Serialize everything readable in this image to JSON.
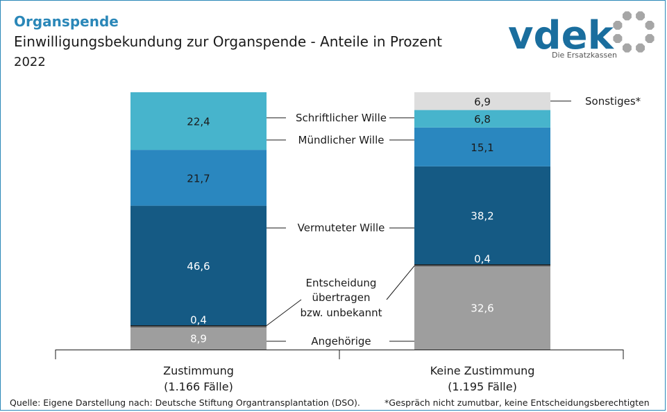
{
  "header": {
    "title": "Organspende",
    "subtitle": "Einwilligungsbekundung zur Organspende - Anteile in Prozent",
    "year": "2022"
  },
  "logo": {
    "wordmark": "vdek",
    "tagline": "Die Ersatzkassen"
  },
  "chart_data": {
    "type": "bar",
    "stacked": true,
    "unit": "%",
    "categories": [
      "Zustimmung",
      "Keine Zustimmung"
    ],
    "category_notes": [
      "(1.166 Fälle)",
      "(1.195 Fälle)"
    ],
    "series": [
      {
        "name": "Angehörige",
        "values": [
          8.9,
          32.6
        ],
        "color": "#9e9e9e",
        "value_color": "#ffffff"
      },
      {
        "name": "Entscheidung übertragen bzw. unbekannt",
        "values": [
          0.4,
          0.4
        ],
        "color": "#9e9e9e",
        "value_color": "#ffffff"
      },
      {
        "name": "Vermuteter Wille",
        "values": [
          46.6,
          38.2
        ],
        "color": "#155a84",
        "value_color": "#ffffff"
      },
      {
        "name": "Mündlicher Wille",
        "values": [
          21.7,
          15.1
        ],
        "color": "#2a87bf",
        "value_color": "#1a1a1a"
      },
      {
        "name": "Schriftlicher Wille",
        "values": [
          22.4,
          6.8
        ],
        "color": "#47b4cc",
        "value_color": "#1a1a1a"
      },
      {
        "name": "Sonstiges*",
        "values": [
          null,
          6.9
        ],
        "color": "#dddddd",
        "value_color": "#1a1a1a"
      }
    ],
    "labels": {
      "schriftlich": "Schriftlicher Wille",
      "muendlich": "Mündlicher Wille",
      "vermutet": "Vermuteter Wille",
      "entscheidung_lines": [
        "Entscheidung",
        "übertragen",
        "bzw. unbekannt"
      ],
      "angehoerige": "Angehörige",
      "sonstiges": "Sonstiges*"
    },
    "value_labels": {
      "Zustimmung": [
        "8,9",
        "0,4",
        "46,6",
        "21,7",
        "22,4",
        null
      ],
      "Keine Zustimmung": [
        "32,6",
        "0,4",
        "38,2",
        "15,1",
        "6,8",
        "6,9"
      ]
    },
    "ylim": [
      0,
      100
    ]
  },
  "footer": {
    "source": "Quelle: Eigene Darstellung nach: Deutsche Stiftung Organtransplantation (DSO).",
    "note": "*Gespräch nicht zumutbar, keine Entscheidungsberechtigten"
  }
}
